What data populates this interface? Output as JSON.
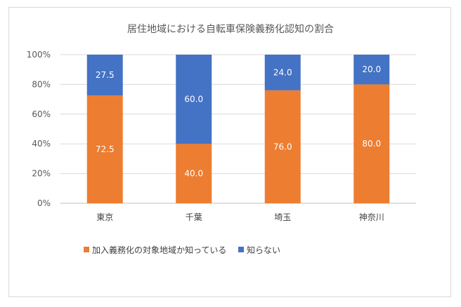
{
  "chart_data": {
    "type": "bar",
    "stacked": "percent",
    "title": "居住地域における自転車保険義務化認知の割合",
    "categories": [
      "東京",
      "千葉",
      "埼玉",
      "神奈川"
    ],
    "series": [
      {
        "name": "加入義務化の対象地域か知っている",
        "values": [
          72.5,
          40.0,
          76.0,
          80.0
        ],
        "color": "#ED7D31"
      },
      {
        "name": "知らない",
        "values": [
          27.5,
          60.0,
          24.0,
          20.0
        ],
        "color": "#4472C4"
      }
    ],
    "ylim": [
      0,
      100
    ],
    "yticks": [
      "0%",
      "20%",
      "40%",
      "60%",
      "80%",
      "100%"
    ],
    "grid": true,
    "legend": "bottom"
  }
}
